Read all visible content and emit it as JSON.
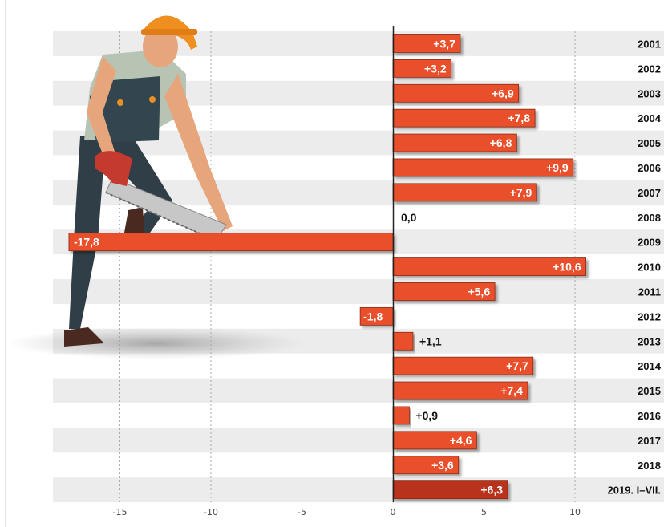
{
  "chart_data": {
    "type": "bar",
    "orientation": "horizontal",
    "categories": [
      "2001",
      "2002",
      "2003",
      "2004",
      "2005",
      "2006",
      "2007",
      "2008",
      "2009",
      "2010",
      "2011",
      "2012",
      "2013",
      "2014",
      "2015",
      "2016",
      "2017",
      "2018",
      "2019. I–VII."
    ],
    "values": [
      3.7,
      3.2,
      6.9,
      7.8,
      6.8,
      9.9,
      7.9,
      0.0,
      -17.8,
      10.6,
      5.6,
      -1.8,
      1.1,
      7.7,
      7.4,
      0.9,
      4.6,
      3.6,
      6.3
    ],
    "value_labels": [
      "+3,7",
      "+3,2",
      "+6,9",
      "+7,8",
      "+6,8",
      "+9,9",
      "+7,9",
      "0,0",
      "-17,8",
      "+10,6",
      "+5,6",
      "-1,8",
      "+1,1",
      "+7,7",
      "+7,4",
      "+0,9",
      "+4,6",
      "+3,6",
      "+6,3"
    ],
    "highlight_index": 18,
    "xlim": [
      -20,
      12
    ],
    "xticks": [
      -15,
      -10,
      -5,
      0,
      5,
      10
    ],
    "xtick_labels": [
      "-15",
      "-10",
      "-5",
      "0",
      "5",
      "10"
    ],
    "grid": true,
    "title": "",
    "xlabel": "",
    "ylabel": "",
    "colors": {
      "bar": "#e8502a",
      "bar_highlight": "#b9321a",
      "bar_edge": "#8a2a14",
      "row_stripe": "#ececec",
      "axis": "#222222"
    },
    "illustration": "construction-worker-sawing-bar-icon"
  }
}
